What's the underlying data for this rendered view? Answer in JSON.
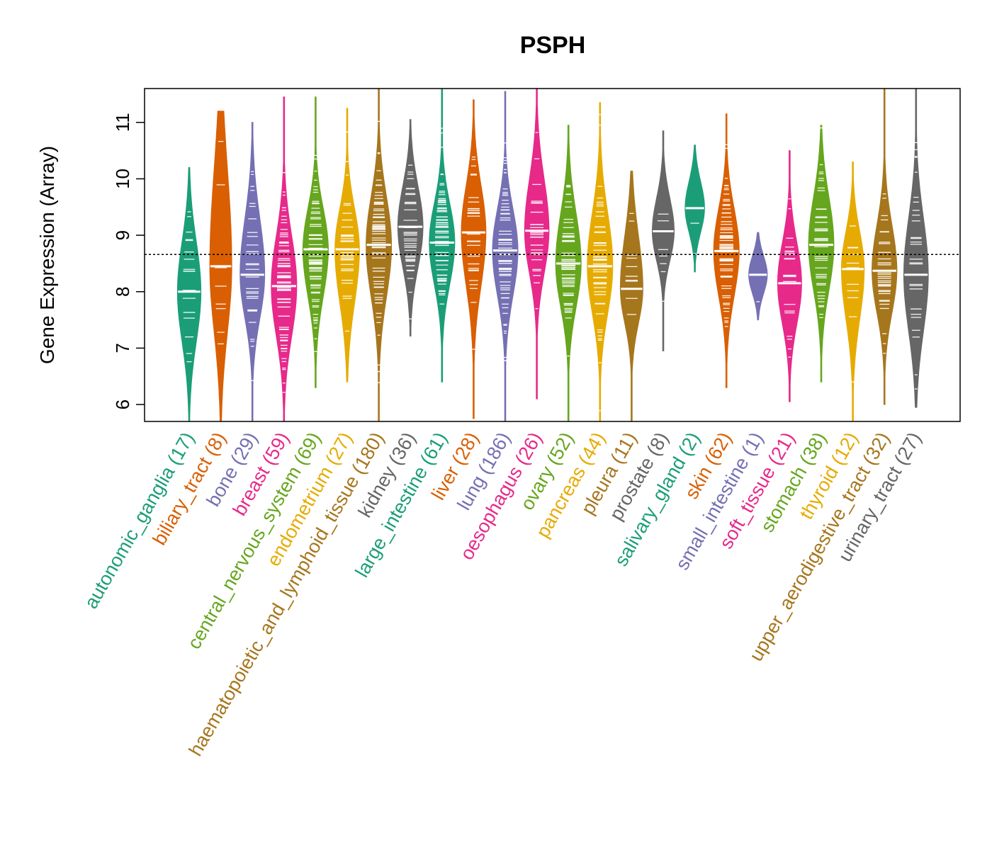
{
  "chart_data": {
    "type": "violin",
    "title": "PSPH",
    "xlabel": "",
    "ylabel": "Gene Expression (Array)",
    "ylim": [
      5.7,
      11.6
    ],
    "yticks": [
      6,
      7,
      8,
      9,
      10,
      11
    ],
    "reference_line": 8.66,
    "categories": [
      {
        "name": "autonomic_ganglia",
        "n": 17,
        "color": "#1b9e77",
        "median": 8.0,
        "min": 5.7,
        "max": 10.2,
        "q_low": 7.2,
        "q_high": 8.8
      },
      {
        "name": "biliary_tract",
        "n": 8,
        "color": "#d95f02",
        "median": 8.45,
        "min": 5.7,
        "max": 11.2,
        "q_low": 7.4,
        "q_high": 10.0
      },
      {
        "name": "bone",
        "n": 29,
        "color": "#7570b3",
        "median": 8.3,
        "min": 5.7,
        "max": 11.0,
        "q_low": 7.6,
        "q_high": 9.2
      },
      {
        "name": "breast",
        "n": 59,
        "color": "#e7298a",
        "median": 8.1,
        "min": 5.7,
        "max": 11.45,
        "q_low": 7.3,
        "q_high": 8.9
      },
      {
        "name": "central_nervous_system",
        "n": 69,
        "color": "#66a61e",
        "median": 8.75,
        "min": 6.3,
        "max": 11.45,
        "q_low": 8.0,
        "q_high": 9.4
      },
      {
        "name": "endometrium",
        "n": 27,
        "color": "#e6ab02",
        "median": 8.75,
        "min": 6.4,
        "max": 11.25,
        "q_low": 7.9,
        "q_high": 9.4
      },
      {
        "name": "haematopoietic_and_lymphoid_tissue",
        "n": 180,
        "color": "#a6761d",
        "median": 8.83,
        "min": 5.7,
        "max": 11.6,
        "q_low": 8.0,
        "q_high": 9.6
      },
      {
        "name": "kidney",
        "n": 36,
        "color": "#666666",
        "median": 9.15,
        "min": 7.2,
        "max": 11.05,
        "q_low": 8.5,
        "q_high": 9.8
      },
      {
        "name": "large_intestine",
        "n": 61,
        "color": "#1b9e77",
        "median": 8.87,
        "min": 6.4,
        "max": 11.6,
        "q_low": 8.2,
        "q_high": 9.5
      },
      {
        "name": "liver",
        "n": 28,
        "color": "#d95f02",
        "median": 9.05,
        "min": 5.75,
        "max": 11.4,
        "q_low": 8.2,
        "q_high": 9.8
      },
      {
        "name": "lung",
        "n": 186,
        "color": "#7570b3",
        "median": 8.73,
        "min": 5.7,
        "max": 11.55,
        "q_low": 8.0,
        "q_high": 9.4
      },
      {
        "name": "oesophagus",
        "n": 26,
        "color": "#e7298a",
        "median": 9.08,
        "min": 6.1,
        "max": 11.6,
        "q_low": 8.4,
        "q_high": 9.9
      },
      {
        "name": "ovary",
        "n": 52,
        "color": "#66a61e",
        "median": 8.5,
        "min": 5.7,
        "max": 10.95,
        "q_low": 7.8,
        "q_high": 9.3
      },
      {
        "name": "pancreas",
        "n": 44,
        "color": "#e6ab02",
        "median": 8.45,
        "min": 5.7,
        "max": 11.35,
        "q_low": 7.7,
        "q_high": 9.3
      },
      {
        "name": "pleura",
        "n": 11,
        "color": "#a6761d",
        "median": 8.05,
        "min": 5.7,
        "max": 10.15,
        "q_low": 7.5,
        "q_high": 8.9
      },
      {
        "name": "prostate",
        "n": 8,
        "color": "#666666",
        "median": 9.07,
        "min": 6.95,
        "max": 10.85,
        "q_low": 8.6,
        "q_high": 9.6
      },
      {
        "name": "salivary_gland",
        "n": 2,
        "color": "#1b9e77",
        "median": 9.48,
        "min": 8.35,
        "max": 10.6,
        "q_low": 9.1,
        "q_high": 9.9
      },
      {
        "name": "skin",
        "n": 62,
        "color": "#d95f02",
        "median": 8.72,
        "min": 6.3,
        "max": 11.15,
        "q_low": 8.0,
        "q_high": 9.4
      },
      {
        "name": "small_intestine",
        "n": 1,
        "color": "#7570b3",
        "median": 8.3,
        "min": 7.5,
        "max": 9.05,
        "q_low": 8.0,
        "q_high": 8.6
      },
      {
        "name": "soft_tissue",
        "n": 21,
        "color": "#e7298a",
        "median": 8.15,
        "min": 6.05,
        "max": 10.5,
        "q_low": 7.5,
        "q_high": 8.8
      },
      {
        "name": "stomach",
        "n": 38,
        "color": "#66a61e",
        "median": 8.83,
        "min": 6.4,
        "max": 10.95,
        "q_low": 8.1,
        "q_high": 9.6
      },
      {
        "name": "thyroid",
        "n": 12,
        "color": "#e6ab02",
        "median": 8.4,
        "min": 5.7,
        "max": 10.3,
        "q_low": 7.6,
        "q_high": 9.0
      },
      {
        "name": "upper_aerodigestive_tract",
        "n": 32,
        "color": "#a6761d",
        "median": 8.37,
        "min": 6.0,
        "max": 11.6,
        "q_low": 7.7,
        "q_high": 9.1
      },
      {
        "name": "urinary_tract",
        "n": 27,
        "color": "#666666",
        "median": 8.3,
        "min": 5.95,
        "max": 11.6,
        "q_low": 7.4,
        "q_high": 9.2
      }
    ]
  }
}
